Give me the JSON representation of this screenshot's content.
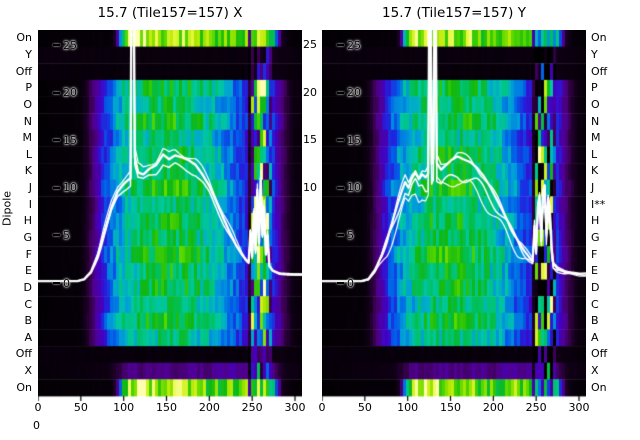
{
  "corner_zero": "0",
  "chart_data": {
    "type": "heatmap",
    "ylabel": "Dipole",
    "x_range": [
      0,
      310
    ],
    "y_range": [
      0,
      25
    ],
    "x_ticks": [
      0,
      50,
      100,
      150,
      200,
      250,
      300
    ],
    "y_ticks": [
      25,
      20,
      15,
      10,
      5,
      0
    ],
    "gap_y_ticks": [
      25,
      20,
      15,
      10
    ],
    "colormap": [
      [
        0,
        "#000000"
      ],
      [
        0.07,
        "#16001f"
      ],
      [
        0.14,
        "#3a0050"
      ],
      [
        0.21,
        "#500090"
      ],
      [
        0.28,
        "#4400c0"
      ],
      [
        0.35,
        "#2222dd"
      ],
      [
        0.42,
        "#0060e8"
      ],
      [
        0.5,
        "#00a0d8"
      ],
      [
        0.57,
        "#00c8a0"
      ],
      [
        0.64,
        "#00c060"
      ],
      [
        0.72,
        "#10b810"
      ],
      [
        0.8,
        "#58d800"
      ],
      [
        0.88,
        "#b2e800"
      ],
      [
        0.95,
        "#e8f840"
      ],
      [
        1,
        "#ffffb0"
      ]
    ],
    "profiles": {
      "on": [
        [
          0,
          0.01
        ],
        [
          86,
          0.02
        ],
        [
          92,
          0.25
        ],
        [
          97,
          0.7
        ],
        [
          104,
          0.85
        ],
        [
          112,
          0.92
        ],
        [
          122,
          0.96
        ],
        [
          135,
          0.9
        ],
        [
          150,
          0.84
        ],
        [
          165,
          0.88
        ],
        [
          180,
          0.82
        ],
        [
          195,
          0.8
        ],
        [
          210,
          0.78
        ],
        [
          225,
          0.82
        ],
        [
          238,
          0.78
        ],
        [
          248,
          0.84
        ],
        [
          256,
          0.9
        ],
        [
          264,
          0.86
        ],
        [
          271,
          0.7
        ],
        [
          277,
          0.35
        ],
        [
          283,
          0.08
        ],
        [
          292,
          0.02
        ],
        [
          310,
          0.01
        ]
      ],
      "off": [
        [
          0,
          0.03
        ],
        [
          240,
          0.03
        ],
        [
          252,
          0.1
        ],
        [
          258,
          0.14
        ],
        [
          266,
          0.12
        ],
        [
          274,
          0.05
        ],
        [
          310,
          0.02
        ]
      ],
      "main": [
        [
          0,
          0.01
        ],
        [
          48,
          0.02
        ],
        [
          56,
          0.09
        ],
        [
          64,
          0.2
        ],
        [
          72,
          0.32
        ],
        [
          80,
          0.42
        ],
        [
          90,
          0.5
        ],
        [
          100,
          0.57
        ],
        [
          112,
          0.62
        ],
        [
          126,
          0.66
        ],
        [
          145,
          0.69
        ],
        [
          165,
          0.68
        ],
        [
          185,
          0.64
        ],
        [
          200,
          0.59
        ],
        [
          212,
          0.53
        ],
        [
          222,
          0.47
        ],
        [
          230,
          0.42
        ],
        [
          238,
          0.37
        ],
        [
          246,
          0.33
        ],
        [
          252,
          0.5
        ],
        [
          258,
          0.55
        ],
        [
          264,
          0.52
        ],
        [
          270,
          0.42
        ],
        [
          276,
          0.3
        ],
        [
          283,
          0.19
        ],
        [
          290,
          0.1
        ],
        [
          297,
          0.04
        ],
        [
          310,
          0.02
        ]
      ],
      "xrow": [
        [
          0,
          0.02
        ],
        [
          80,
          0.04
        ],
        [
          92,
          0.1
        ],
        [
          105,
          0.2
        ],
        [
          120,
          0.17
        ],
        [
          140,
          0.21
        ],
        [
          160,
          0.18
        ],
        [
          180,
          0.22
        ],
        [
          200,
          0.19
        ],
        [
          220,
          0.24
        ],
        [
          235,
          0.2
        ],
        [
          245,
          0.22
        ],
        [
          252,
          0.28
        ],
        [
          260,
          0.25
        ],
        [
          268,
          0.27
        ],
        [
          276,
          0.14
        ],
        [
          285,
          0.06
        ],
        [
          310,
          0.02
        ]
      ]
    },
    "rows": [
      {
        "label": "On",
        "profile": "on",
        "gain": 1,
        "sg": 0.3
      },
      {
        "label": "Y",
        "profile": "off",
        "gain": 1,
        "sg": 0.5
      },
      {
        "label": "Off",
        "profile": "off",
        "gain": 0.8,
        "sg": 0.5
      },
      {
        "label": "P",
        "profile": "main",
        "gain": 1.0,
        "sg": 1
      },
      {
        "label": "O",
        "profile": "main",
        "gain": 0.95,
        "sg": 1
      },
      {
        "label": "N",
        "profile": "main",
        "gain": 1.03,
        "sg": 1
      },
      {
        "label": "M",
        "profile": "main",
        "gain": 0.9,
        "sg": 1
      },
      {
        "label": "L",
        "profile": "main",
        "gain": 1.0,
        "sg": 1
      },
      {
        "label": "K",
        "profile": "main",
        "gain": 0.96,
        "sg": 1
      },
      {
        "label": "J",
        "profile": "main",
        "gain": 1.04,
        "sg": 1
      },
      {
        "label": "I",
        "profile": "main",
        "gain": 0.92,
        "sg": 1
      },
      {
        "label": "H",
        "profile": "main",
        "gain": 1.0,
        "sg": 1
      },
      {
        "label": "G",
        "profile": "main",
        "gain": 0.97,
        "sg": 1
      },
      {
        "label": "F",
        "profile": "main",
        "gain": 1.05,
        "sg": 1
      },
      {
        "label": "E",
        "profile": "main",
        "gain": 0.98,
        "sg": 1
      },
      {
        "label": "D",
        "profile": "main",
        "gain": 1.0,
        "sg": 1
      },
      {
        "label": "C",
        "profile": "main",
        "gain": 0.93,
        "sg": 1
      },
      {
        "label": "B",
        "profile": "main",
        "gain": 1.02,
        "sg": 1
      },
      {
        "label": "A",
        "profile": "main",
        "gain": 0.9,
        "sg": 1
      },
      {
        "label": "Off",
        "profile": "off",
        "gain": 0.8,
        "sg": 0.5
      },
      {
        "label": "X",
        "profile": "xrow",
        "gain": 1,
        "sg": 0.7
      },
      {
        "label": "On",
        "profile": "on",
        "gain": 0.98,
        "sg": 0.3
      }
    ],
    "right_row_labels": [
      "On",
      "Y",
      "Off",
      "P",
      "O",
      "N",
      "M",
      "L",
      "K",
      "J",
      "I**",
      "H",
      "G",
      "F",
      "E",
      "D",
      "C",
      "B",
      "A",
      "Off",
      "X",
      "On"
    ],
    "panels": [
      {
        "title": "15.7 (Tile157=157) X",
        "seed": 1,
        "stripes": [
          {
            "x0": 243,
            "x1": 248,
            "mul": 0.3,
            "add": 0,
            "noise": 0.04
          },
          {
            "x0": 248.5,
            "x1": 258,
            "mul": 0.9,
            "add": 0.16,
            "noise": 0.4
          },
          {
            "x0": 258,
            "x1": 267,
            "mul": 0.9,
            "add": 0.2,
            "noise": 0.45
          },
          {
            "x0": 267,
            "x1": 272,
            "mul": 0.8,
            "add": 0.04,
            "noise": 0.25
          }
        ],
        "line_base": [
          [
            0,
            0.2
          ],
          [
            46,
            0.2
          ],
          [
            54,
            0.4
          ],
          [
            62,
            1.2
          ],
          [
            70,
            3
          ],
          [
            78,
            5.5
          ],
          [
            86,
            8
          ],
          [
            93,
            9.6
          ],
          [
            100,
            10.4
          ],
          [
            105,
            10.8
          ],
          [
            108,
            11
          ],
          [
            109,
            28
          ],
          [
            112,
            28
          ],
          [
            113,
            13.2
          ],
          [
            117,
            11.6
          ],
          [
            123,
            11.4
          ],
          [
            130,
            12
          ],
          [
            138,
            12.4
          ],
          [
            146,
            13.5
          ],
          [
            153,
            13
          ],
          [
            160,
            13.4
          ],
          [
            168,
            13.2
          ],
          [
            176,
            12.9
          ],
          [
            184,
            12.4
          ],
          [
            192,
            11.4
          ],
          [
            200,
            10.2
          ],
          [
            208,
            8.6
          ],
          [
            216,
            6.9
          ],
          [
            224,
            5.3
          ],
          [
            231,
            4
          ],
          [
            238,
            3
          ],
          [
            243,
            2.4
          ],
          [
            246,
            2.2
          ],
          [
            248,
            5.5
          ],
          [
            250,
            2.8
          ],
          [
            252,
            7.5
          ],
          [
            254,
            3.4
          ],
          [
            256,
            9.8
          ],
          [
            258,
            4.2
          ],
          [
            260,
            11
          ],
          [
            262,
            5
          ],
          [
            264,
            8
          ],
          [
            266,
            3
          ],
          [
            268,
            5
          ],
          [
            270,
            1.8
          ],
          [
            274,
            1.3
          ],
          [
            282,
            1
          ],
          [
            300,
            0.9
          ],
          [
            310,
            0.9
          ]
        ],
        "line_variants": [
          {
            "scale": 1,
            "width": 2.4,
            "amp": 0,
            "seed": 5
          },
          {
            "scale": 0.93,
            "width": 1.5,
            "amp": 0.4,
            "seed": 8
          },
          {
            "scale": 1.05,
            "width": 1.2,
            "amp": 0.55,
            "seed": 3
          }
        ]
      },
      {
        "title": "15.7 (Tile157=157) Y",
        "seed": 2,
        "stripes": [
          {
            "x0": 243,
            "x1": 248,
            "mul": 0.3,
            "add": 0,
            "noise": 0.04
          },
          {
            "x0": 248.5,
            "x1": 268,
            "mul": 0.55,
            "add": 0.06,
            "noise": 0.7
          },
          {
            "x0": 268,
            "x1": 273,
            "mul": 0.7,
            "add": 0,
            "noise": 0.3
          }
        ],
        "line_base": [
          [
            0,
            0.2
          ],
          [
            46,
            0.2
          ],
          [
            54,
            0.4
          ],
          [
            62,
            1.4
          ],
          [
            70,
            3
          ],
          [
            76,
            4.6
          ],
          [
            82,
            6.4
          ],
          [
            88,
            8.2
          ],
          [
            93,
            9.6
          ],
          [
            97,
            10.6
          ],
          [
            101,
            10
          ],
          [
            105,
            11
          ],
          [
            109,
            11.6
          ],
          [
            113,
            10.9
          ],
          [
            117,
            11.4
          ],
          [
            121,
            11.1
          ],
          [
            124,
            11.5
          ],
          [
            125,
            28
          ],
          [
            127,
            28
          ],
          [
            128,
            12.5
          ],
          [
            130,
            13
          ],
          [
            131,
            28
          ],
          [
            133,
            28
          ],
          [
            134,
            12.6
          ],
          [
            139,
            11.9
          ],
          [
            145,
            12.4
          ],
          [
            151,
            12.9
          ],
          [
            158,
            13.3
          ],
          [
            165,
            13
          ],
          [
            173,
            12.7
          ],
          [
            181,
            12.1
          ],
          [
            189,
            11.2
          ],
          [
            197,
            10
          ],
          [
            205,
            8.6
          ],
          [
            213,
            7.2
          ],
          [
            221,
            5.7
          ],
          [
            229,
            4.4
          ],
          [
            236,
            3.4
          ],
          [
            242,
            2.7
          ],
          [
            246,
            2.3
          ],
          [
            248,
            6
          ],
          [
            250,
            3.2
          ],
          [
            252,
            8
          ],
          [
            254,
            9.2
          ],
          [
            256,
            4.4
          ],
          [
            258,
            9.6
          ],
          [
            260,
            10.2
          ],
          [
            262,
            5.2
          ],
          [
            264,
            9
          ],
          [
            266,
            7.8
          ],
          [
            268,
            3.8
          ],
          [
            270,
            2
          ],
          [
            275,
            1.5
          ],
          [
            283,
            1.2
          ],
          [
            300,
            1
          ],
          [
            310,
            1
          ]
        ],
        "line_variants": [
          {
            "scale": 1,
            "width": 2.2,
            "amp": 0,
            "seed": 4
          },
          {
            "scale": 0.88,
            "width": 1.5,
            "amp": 0.9,
            "seed": 9
          },
          {
            "scale": 1.03,
            "width": 1.3,
            "amp": 0.7,
            "seed": 2
          },
          {
            "scale": 0.8,
            "width": 1.2,
            "amp": 1.1,
            "seed": 7
          }
        ]
      }
    ]
  }
}
